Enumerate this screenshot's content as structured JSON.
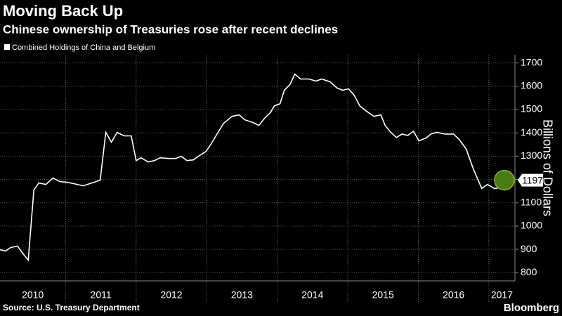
{
  "chart_data": {
    "type": "line",
    "title": "Moving Back Up",
    "subtitle": "Chinese ownership of Treasuries rose after recent declines",
    "y_label": "Billions of Dollars",
    "source": "Source: U.S. Treasury Department",
    "brand": "Bloomberg",
    "xlim": [
      2010.07,
      2017.37
    ],
    "xticks": [
      {
        "value": 2010,
        "label": "2010"
      },
      {
        "value": 2011,
        "label": "2011"
      },
      {
        "value": 2012,
        "label": "2012"
      },
      {
        "value": 2013,
        "label": "2013"
      },
      {
        "value": 2014,
        "label": "2014"
      },
      {
        "value": 2015,
        "label": "2015"
      },
      {
        "value": 2016,
        "label": "2016"
      },
      {
        "value": 2017,
        "label": "2017"
      }
    ],
    "ylim": [
      765,
      1735
    ],
    "yticks": [
      800,
      900,
      1000,
      1100,
      1200,
      1300,
      1400,
      1500,
      1600,
      1700
    ],
    "grid": true,
    "x": [
      2010.07,
      2010.15,
      2010.22,
      2010.32,
      2010.39,
      2010.47,
      2010.55,
      2010.62,
      2010.72,
      2010.82,
      2010.92,
      2011.02,
      2011.12,
      2011.25,
      2011.37,
      2011.49,
      2011.57,
      2011.65,
      2011.73,
      2011.83,
      2011.93,
      2012.0,
      2012.07,
      2012.17,
      2012.26,
      2012.34,
      2012.46,
      2012.56,
      2012.64,
      2012.72,
      2012.81,
      2012.91,
      2012.99,
      2013.06,
      2013.16,
      2013.24,
      2013.36,
      2013.46,
      2013.54,
      2013.66,
      2013.74,
      2013.82,
      2013.9,
      2013.96,
      2014.04,
      2014.1,
      2014.18,
      2014.25,
      2014.33,
      2014.45,
      2014.55,
      2014.63,
      2014.75,
      2014.85,
      2014.93,
      2015.01,
      2015.09,
      2015.17,
      2015.27,
      2015.37,
      2015.47,
      2015.53,
      2015.61,
      2015.69,
      2015.77,
      2015.85,
      2015.93,
      2016.01,
      2016.11,
      2016.18,
      2016.26,
      2016.38,
      2016.5,
      2016.58,
      2016.68,
      2016.78,
      2016.9,
      2016.98,
      2017.08,
      2017.14,
      2017.22
    ],
    "series": [
      {
        "name": "Combined Holdings of China and Belgium",
        "color": "#ffffff",
        "values": [
          899,
          893,
          908,
          914,
          884,
          854,
          1155,
          1185,
          1179,
          1206,
          1191,
          1188,
          1182,
          1173,
          1185,
          1197,
          1402,
          1360,
          1402,
          1387,
          1387,
          1281,
          1293,
          1275,
          1281,
          1293,
          1290,
          1290,
          1299,
          1281,
          1284,
          1305,
          1320,
          1351,
          1402,
          1441,
          1471,
          1477,
          1456,
          1444,
          1432,
          1462,
          1486,
          1516,
          1525,
          1583,
          1607,
          1652,
          1631,
          1631,
          1622,
          1631,
          1619,
          1592,
          1583,
          1589,
          1562,
          1516,
          1492,
          1471,
          1477,
          1432,
          1402,
          1380,
          1395,
          1389,
          1407,
          1366,
          1378,
          1395,
          1402,
          1395,
          1395,
          1372,
          1330,
          1245,
          1161,
          1179,
          1161,
          1164,
          1197
        ]
      }
    ]
  }
}
